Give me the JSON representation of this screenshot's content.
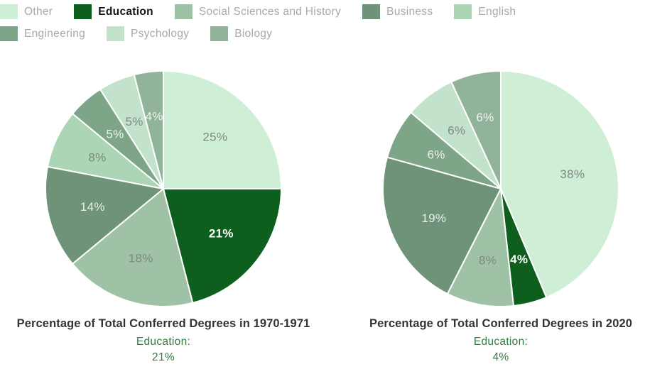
{
  "colors": {
    "background": "#ffffff",
    "education_green": "#0e5e1d",
    "green_text": "#2e7d41",
    "title_text": "#303436",
    "legend_text": "#a8a8a8",
    "legend_text_active": "#141414",
    "slice_label_gray": "#7d8881",
    "slice_label_light": "#ffffff",
    "slice_border": "#ffffff"
  },
  "legend": {
    "items": [
      {
        "label": "Other",
        "color": "#cfeed6",
        "emphasis": false
      },
      {
        "label": "Education",
        "color": "#0e5e1d",
        "emphasis": true
      },
      {
        "label": "Social Sciences and History",
        "color": "#9fc2a7",
        "emphasis": false
      },
      {
        "label": "Business",
        "color": "#6e9378",
        "emphasis": false
      },
      {
        "label": "English",
        "color": "#abd5b4",
        "emphasis": false
      },
      {
        "label": "Engineering",
        "color": "#7ea587",
        "emphasis": false
      },
      {
        "label": "Psychology",
        "color": "#c3e2cb",
        "emphasis": false
      },
      {
        "label": "Biology",
        "color": "#90b39a",
        "emphasis": false
      }
    ]
  },
  "chart_data": [
    {
      "type": "pie",
      "title": "Percentage of Total Conferred Degrees in 1970-1971",
      "legend_position": "top",
      "start_angle_deg": 0,
      "direction": "clockwise",
      "categories": [
        "Other",
        "Education",
        "Social Sciences and History",
        "Business",
        "English",
        "Engineering",
        "Psychology",
        "Biology"
      ],
      "values": [
        25,
        21,
        18,
        14,
        8,
        5,
        5,
        4
      ],
      "slice_labels": [
        "25%",
        "21%",
        "18%",
        "14%",
        "8%",
        "5%",
        "5%",
        "4%"
      ],
      "slice_colors": [
        "#cfeed6",
        "#0e5e1d",
        "#9fc2a7",
        "#6e9378",
        "#abd5b4",
        "#7ea587",
        "#c3e2cb",
        "#90b39a"
      ],
      "label_styles": [
        "gray",
        "white-bold",
        "gray",
        "light",
        "gray",
        "light",
        "gray",
        "light"
      ],
      "footer_label": "Education:",
      "footer_value": "21%"
    },
    {
      "type": "pie",
      "title": "Percentage of Total Conferred Degrees in 2020",
      "legend_position": "top",
      "start_angle_deg": 0,
      "direction": "clockwise",
      "categories": [
        "Other",
        "Education",
        "Social Sciences and History",
        "Business",
        "Engineering",
        "Psychology",
        "Biology"
      ],
      "values": [
        38,
        4,
        8,
        19,
        6,
        6,
        6
      ],
      "slice_labels": [
        "38%",
        "4%",
        "8%",
        "19%",
        "6%",
        "6%",
        "6%"
      ],
      "slice_colors": [
        "#cfeed6",
        "#0e5e1d",
        "#9fc2a7",
        "#6e9378",
        "#7ea587",
        "#c3e2cb",
        "#90b39a"
      ],
      "label_styles": [
        "gray",
        "white-bold",
        "gray",
        "light",
        "light",
        "gray",
        "light"
      ],
      "footer_label": "Education:",
      "footer_value": "4%"
    }
  ]
}
